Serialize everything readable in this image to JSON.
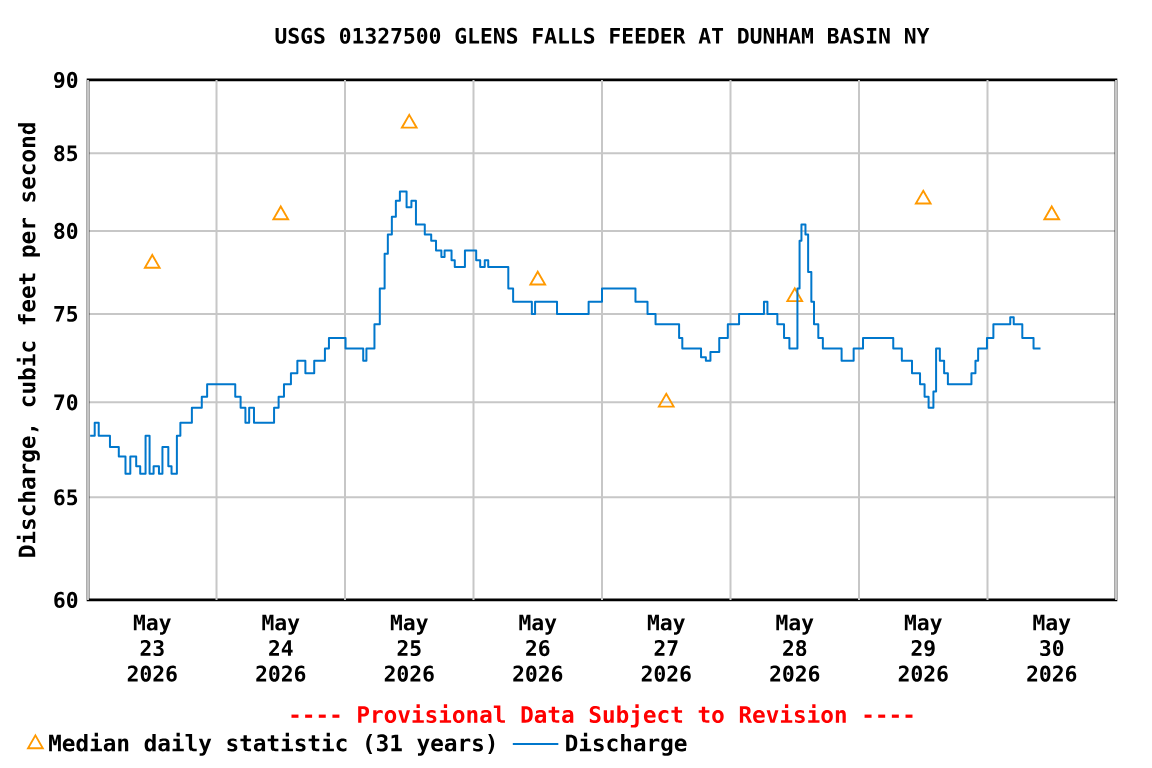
{
  "chart_data": {
    "type": "step",
    "title": "USGS 01327500 GLENS FALLS FEEDER AT DUNHAM BASIN NY",
    "ylabel": "Discharge, cubic feet per second",
    "annotations": [
      "---- Provisional Data Subject to Revision ----"
    ],
    "log": "y",
    "grid": true,
    "legend": "bottom",
    "xlim": [
      "2026-05-23T00:00",
      "2026-05-31T00:00"
    ],
    "ylim": [
      60,
      90
    ],
    "yticks": [
      60,
      65,
      70,
      75,
      80,
      85,
      90
    ],
    "xticks": [
      {
        "value": "2026-05-23T00:00",
        "label": null
      },
      {
        "value": "2026-05-23T12:00",
        "label": "May 23 2026"
      },
      {
        "value": "2026-05-24T00:00",
        "label": null
      },
      {
        "value": "2026-05-24T12:00",
        "label": "May 24 2026"
      },
      {
        "value": "2026-05-25T00:00",
        "label": null
      },
      {
        "value": "2026-05-25T12:00",
        "label": "May 25 2026"
      },
      {
        "value": "2026-05-26T00:00",
        "label": null
      },
      {
        "value": "2026-05-26T12:00",
        "label": "May 26 2026"
      },
      {
        "value": "2026-05-27T00:00",
        "label": null
      },
      {
        "value": "2026-05-27T12:00",
        "label": "May 27 2026"
      },
      {
        "value": "2026-05-28T00:00",
        "label": null
      },
      {
        "value": "2026-05-28T12:00",
        "label": "May 28 2026"
      },
      {
        "value": "2026-05-29T00:00",
        "label": null
      },
      {
        "value": "2026-05-29T12:00",
        "label": "May 29 2026"
      },
      {
        "value": "2026-05-30T00:00",
        "label": null
      },
      {
        "value": "2026-05-30T12:00",
        "label": "May 30 2026"
      },
      {
        "value": "2026-05-31T00:00",
        "label": null
      }
    ],
    "series": [
      {
        "name": "Median daily statistic (31 years)",
        "type": "scatter",
        "marker": "triangle",
        "color": "#ff9900",
        "x": [
          "2026-05-23T12:00",
          "2026-05-24T12:00",
          "2026-05-25T12:00",
          "2026-05-26T12:00",
          "2026-05-27T12:00",
          "2026-05-28T12:00",
          "2026-05-29T12:00",
          "2026-05-30T12:00"
        ],
        "values": [
          78,
          81,
          87,
          77,
          70,
          76,
          82,
          81
        ]
      },
      {
        "name": "Discharge",
        "marker": "none",
        "color": "#0077cc",
        "x": [
          "2026-05-23T00:24",
          "2026-05-23T01:15",
          "2026-05-23T02:00",
          "2026-05-23T04:06",
          "2026-05-23T05:45",
          "2026-05-23T07:00",
          "2026-05-23T07:54",
          "2026-05-23T09:00",
          "2026-05-23T09:45",
          "2026-05-23T10:45",
          "2026-05-23T11:30",
          "2026-05-23T12:15",
          "2026-05-23T13:15",
          "2026-05-23T13:54",
          "2026-05-23T15:00",
          "2026-05-23T15:36",
          "2026-05-23T16:36",
          "2026-05-23T17:15",
          "2026-05-23T19:24",
          "2026-05-23T21:15",
          "2026-05-23T22:15",
          "2026-05-24T03:30",
          "2026-05-24T04:30",
          "2026-05-24T05:24",
          "2026-05-24T06:06",
          "2026-05-24T07:00",
          "2026-05-24T10:45",
          "2026-05-24T11:36",
          "2026-05-24T12:36",
          "2026-05-24T13:54",
          "2026-05-24T15:06",
          "2026-05-24T16:36",
          "2026-05-24T18:15",
          "2026-05-24T20:15",
          "2026-05-24T21:00",
          "2026-05-25T00:06",
          "2026-05-25T03:24",
          "2026-05-25T04:00",
          "2026-05-25T05:30",
          "2026-05-25T06:30",
          "2026-05-25T07:24",
          "2026-05-25T08:00",
          "2026-05-25T08:45",
          "2026-05-25T09:30",
          "2026-05-25T10:15",
          "2026-05-25T11:30",
          "2026-05-25T12:24",
          "2026-05-25T13:15",
          "2026-05-25T14:54",
          "2026-05-25T16:06",
          "2026-05-25T17:00",
          "2026-05-25T18:00",
          "2026-05-25T18:36",
          "2026-05-25T19:54",
          "2026-05-25T20:30",
          "2026-05-25T22:24",
          "2026-05-26T00:30",
          "2026-05-26T01:15",
          "2026-05-26T02:06",
          "2026-05-26T02:45",
          "2026-05-26T06:30",
          "2026-05-26T07:24",
          "2026-05-26T10:54",
          "2026-05-26T11:30",
          "2026-05-26T15:36",
          "2026-05-26T21:30",
          "2026-05-27T00:00",
          "2026-05-27T06:15",
          "2026-05-27T08:30",
          "2026-05-27T10:00",
          "2026-05-27T11:30",
          "2026-05-27T14:24",
          "2026-05-27T15:00",
          "2026-05-27T18:30",
          "2026-05-27T19:24",
          "2026-05-27T20:15",
          "2026-05-27T21:54",
          "2026-05-27T23:30",
          "2026-05-28T01:36",
          "2026-05-28T06:15",
          "2026-05-28T06:54",
          "2026-05-28T08:45",
          "2026-05-28T10:00",
          "2026-05-28T11:00",
          "2026-05-28T12:30",
          "2026-05-28T12:54",
          "2026-05-28T13:15",
          "2026-05-28T14:00",
          "2026-05-28T14:30",
          "2026-05-28T15:06",
          "2026-05-28T15:36",
          "2026-05-28T16:24",
          "2026-05-28T17:15",
          "2026-05-28T20:45",
          "2026-05-28T23:00",
          "2026-05-29T00:45",
          "2026-05-29T06:24",
          "2026-05-29T08:00",
          "2026-05-29T09:54",
          "2026-05-29T11:24",
          "2026-05-29T12:15",
          "2026-05-29T13:00",
          "2026-05-29T13:54",
          "2026-05-29T14:24",
          "2026-05-29T15:06",
          "2026-05-29T15:54",
          "2026-05-29T16:36",
          "2026-05-29T21:00",
          "2026-05-29T21:45",
          "2026-05-29T22:15",
          "2026-05-29T23:54",
          "2026-05-30T01:06",
          "2026-05-30T04:15",
          "2026-05-30T04:54",
          "2026-05-30T06:30",
          "2026-05-30T08:36",
          "2026-05-30T09:54"
        ],
        "values": [
          68.2,
          68.9,
          68.2,
          67.6,
          67.1,
          66.2,
          67.1,
          66.6,
          66.2,
          68.2,
          66.2,
          66.6,
          66.2,
          67.6,
          66.6,
          66.2,
          68.2,
          68.9,
          69.7,
          70.3,
          71.0,
          70.3,
          69.7,
          68.9,
          69.7,
          68.9,
          69.7,
          70.3,
          71.0,
          71.6,
          72.3,
          71.6,
          72.3,
          73.0,
          73.6,
          73.0,
          72.3,
          73.0,
          74.4,
          76.5,
          78.6,
          79.8,
          80.9,
          81.9,
          82.5,
          81.5,
          81.9,
          80.4,
          79.8,
          79.4,
          78.8,
          78.4,
          78.8,
          78.2,
          77.8,
          78.8,
          78.2,
          77.8,
          78.2,
          77.8,
          76.5,
          75.7,
          75.0,
          75.7,
          75.0,
          75.7,
          76.5,
          75.7,
          75.0,
          74.4,
          74.4,
          73.6,
          73.0,
          72.5,
          72.3,
          72.8,
          73.6,
          74.4,
          75.0,
          75.7,
          75.0,
          74.4,
          73.6,
          73.0,
          76.5,
          79.4,
          80.4,
          79.8,
          77.5,
          75.7,
          74.4,
          73.6,
          73.0,
          72.3,
          73.0,
          73.6,
          73.0,
          72.3,
          71.6,
          71.0,
          70.3,
          69.7,
          70.6,
          73.0,
          72.3,
          71.6,
          71.0,
          71.6,
          72.3,
          73.0,
          73.6,
          74.4,
          74.8,
          74.4,
          73.6,
          73.0,
          73.0
        ]
      }
    ]
  }
}
